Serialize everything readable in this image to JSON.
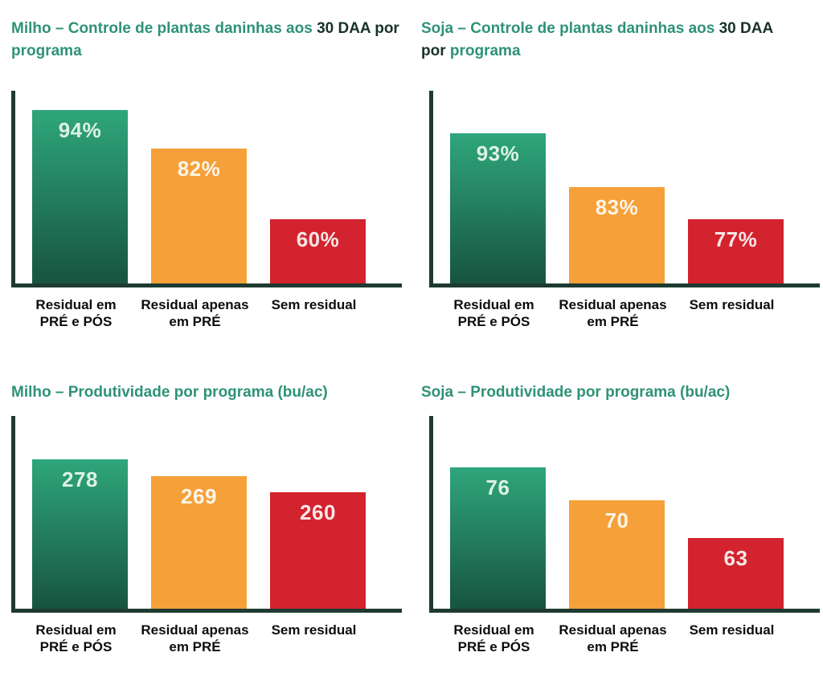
{
  "page": {
    "background": "#ffffff",
    "language": "pt-BR"
  },
  "colors": {
    "title_teal": "#2e9277",
    "title_dark": "#17322b",
    "axis": "#1e3a31",
    "category_text": "#0d0d0d",
    "bar_green_top": "#2fa67c",
    "bar_green_bottom": "#175440",
    "bar_orange": "#f5a039",
    "bar_red": "#d2232e",
    "value_on_green": "#ddf2e6",
    "value_on_orange": "#fdf5e8",
    "value_on_red": "#f9e6e6"
  },
  "chart_data": [
    {
      "id": "milho-controle-30daa",
      "type": "bar",
      "title": "Milho – Controle de plantas daninhas aos 30 DAA por programa",
      "title_segments": [
        {
          "text": "Milho – Controle de plantas daninhas aos ",
          "tone": "teal"
        },
        {
          "text": "30 DAA por",
          "tone": "dark"
        },
        {
          "text": "\nprograma",
          "tone": "teal"
        }
      ],
      "categories": [
        "Residual em\nPRÉ e PÓS",
        "Residual apenas\nem PRÉ",
        "Sem residual"
      ],
      "values": [
        94,
        82,
        60
      ],
      "value_labels": [
        "94%",
        "82%",
        "60%"
      ],
      "unit": "%",
      "bar_colors": [
        "green",
        "orange",
        "red"
      ],
      "ylim": [
        40,
        100
      ],
      "grid": false,
      "legend": false
    },
    {
      "id": "soja-controle-30daa",
      "type": "bar",
      "title": "Soja – Controle de plantas daninhas aos 30 DAA por programa",
      "title_segments": [
        {
          "text": "Soja – Controle de plantas daninhas aos ",
          "tone": "teal"
        },
        {
          "text": "30 DAA\npor",
          "tone": "dark"
        },
        {
          "text": " programa",
          "tone": "teal"
        }
      ],
      "categories": [
        "Residual em\nPRÉ e PÓS",
        "Residual apenas\nem PRÉ",
        "Sem residual"
      ],
      "values": [
        93,
        83,
        77
      ],
      "value_labels": [
        "93%",
        "83%",
        "77%"
      ],
      "unit": "%",
      "bar_colors": [
        "green",
        "orange",
        "red"
      ],
      "ylim": [
        65,
        101
      ],
      "grid": false,
      "legend": false
    },
    {
      "id": "milho-produtividade",
      "type": "bar",
      "title": "Milho – Produtividade por programa (bu/ac)",
      "title_segments": [
        {
          "text": "Milho – Produtividade por programa (bu/ac)",
          "tone": "teal"
        }
      ],
      "categories": [
        "Residual em\nPRÉ e PÓS",
        "Residual apenas\nem PRÉ",
        "Sem residual"
      ],
      "values": [
        278,
        269,
        260
      ],
      "value_labels": [
        "278",
        "269",
        "260"
      ],
      "unit": "bu/ac",
      "bar_colors": [
        "green",
        "orange",
        "red"
      ],
      "ylim": [
        196,
        302
      ],
      "grid": false,
      "legend": false
    },
    {
      "id": "soja-produtividade",
      "type": "bar",
      "title": "Soja – Produtividade por programa (bu/ac)",
      "title_segments": [
        {
          "text": "Soja – Produtividade por programa (bu/ac)",
          "tone": "teal"
        }
      ],
      "categories": [
        "Residual em\nPRÉ e PÓS",
        "Residual apenas\nem PRÉ",
        "Sem residual"
      ],
      "values": [
        76,
        70,
        63
      ],
      "value_labels": [
        "76",
        "70",
        "63"
      ],
      "unit": "bu/ac",
      "bar_colors": [
        "green",
        "orange",
        "red"
      ],
      "ylim": [
        50,
        85.5
      ],
      "grid": false,
      "legend": false
    }
  ]
}
